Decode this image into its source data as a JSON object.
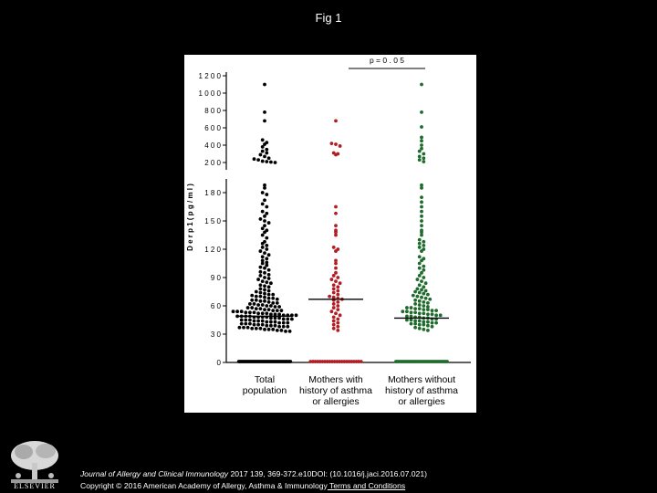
{
  "figure_title": "Fig 1",
  "footer": {
    "journal": "Journal of Allergy and Clinical Immunology",
    "citation": " 2017 139, 369-372.e10DOI: (10.1016/j.jaci.2016.07.021)",
    "copyright": "Copyright © 2016 American Academy of Allergy, Asthma & Immunology",
    "terms_link": " Terms and Conditions"
  },
  "logo_text": "ELSEVIER",
  "colors": {
    "background": "#000000",
    "panel": "#ffffff",
    "total": "#000000",
    "with_history": "#b11d22",
    "without_history": "#1e6b2b"
  },
  "chart_data": {
    "type": "scatter",
    "subtype": "dot-plot (beeswarm) with broken y axis and median lines",
    "ylabel": "D e r p 1 ( p g / m l )",
    "y_ticks_lower": [
      "0",
      "3 0",
      "6 0",
      "9 0",
      "1 2 0",
      "1 5 0",
      "1 8 0"
    ],
    "y_ticks_upper": [
      "2 0 0",
      "4 0 0",
      "6 0 0",
      "8 0 0",
      "1 0 0 0",
      "1 2 0 0"
    ],
    "ylim_lower": [
      0,
      190
    ],
    "ylim_upper": [
      200,
      1200
    ],
    "annotation": "p = 0 . 0 5",
    "annotation_span": [
      "Mothers with history of asthma or allergies",
      "Mothers without history of asthma or allergies"
    ],
    "categories": [
      [
        "Total",
        "population"
      ],
      [
        "Mothers with",
        "history of asthma",
        "or allergies"
      ],
      [
        "Mothers without",
        "history of asthma",
        "or allergies"
      ]
    ],
    "series": [
      {
        "median": 49,
        "zero_count": 40,
        "values": [
          1100,
          780,
          680,
          460,
          430,
          410,
          380,
          350,
          330,
          310,
          290,
          270,
          250,
          240,
          230,
          215,
          210,
          205,
          195,
          190,
          185,
          180,
          178,
          172,
          168,
          165,
          160,
          158,
          155,
          152,
          150,
          148,
          145,
          142,
          140,
          138,
          135,
          132,
          128,
          126,
          124,
          122,
          120,
          118,
          116,
          114,
          112,
          110,
          108,
          106,
          105,
          103,
          101,
          100,
          98,
          96,
          95,
          93,
          92,
          90,
          89,
          88,
          86,
          85,
          84,
          82,
          81,
          80,
          78,
          77,
          76,
          75,
          74,
          73,
          72,
          72,
          71,
          70,
          70,
          69,
          68,
          68,
          67,
          66,
          66,
          65,
          65,
          64,
          63,
          63,
          62,
          62,
          61,
          61,
          60,
          60,
          59,
          59,
          58,
          58,
          57,
          57,
          56,
          56,
          55,
          55,
          55,
          54,
          54,
          54,
          53,
          53,
          53,
          52,
          52,
          52,
          51,
          51,
          51,
          50,
          50,
          50,
          50,
          49,
          49,
          49,
          49,
          48,
          48,
          48,
          48,
          47,
          47,
          47,
          46,
          46,
          46,
          45,
          45,
          45,
          44,
          44,
          44,
          43,
          43,
          43,
          42,
          42,
          42,
          41,
          41,
          41,
          40,
          40,
          40,
          39,
          39,
          39,
          38,
          38,
          38,
          37,
          37,
          37,
          36,
          36,
          36,
          35,
          35,
          35,
          34,
          34,
          33,
          33
        ]
      },
      {
        "median": 67,
        "zero_count": 22,
        "values": [
          680,
          420,
          410,
          390,
          310,
          300,
          290,
          165,
          158,
          145,
          140,
          138,
          135,
          122,
          120,
          118,
          108,
          105,
          100,
          95,
          92,
          90,
          88,
          86,
          84,
          82,
          80,
          78,
          76,
          74,
          72,
          70,
          69,
          68,
          67,
          66,
          64,
          62,
          60,
          58,
          56,
          54,
          52,
          50,
          48,
          46,
          44,
          42,
          40,
          38,
          36,
          34
        ]
      },
      {
        "median": 47,
        "zero_count": 30,
        "values": [
          1100,
          780,
          610,
          490,
          450,
          400,
          360,
          330,
          300,
          270,
          250,
          230,
          210,
          190,
          185,
          175,
          170,
          165,
          160,
          155,
          150,
          145,
          140,
          138,
          135,
          130,
          128,
          126,
          124,
          122,
          120,
          118,
          112,
          110,
          108,
          105,
          102,
          100,
          98,
          95,
          92,
          90,
          88,
          86,
          84,
          82,
          80,
          78,
          77,
          76,
          75,
          74,
          73,
          72,
          71,
          70,
          69,
          68,
          67,
          66,
          65,
          64,
          63,
          62,
          61,
          60,
          59,
          58,
          58,
          57,
          57,
          56,
          56,
          55,
          55,
          54,
          54,
          53,
          53,
          52,
          52,
          51,
          51,
          50,
          50,
          49,
          49,
          48,
          48,
          47,
          47,
          46,
          46,
          45,
          45,
          44,
          44,
          43,
          43,
          42,
          42,
          41,
          41,
          40,
          40,
          39,
          38,
          37,
          36,
          35,
          34
        ]
      }
    ]
  }
}
